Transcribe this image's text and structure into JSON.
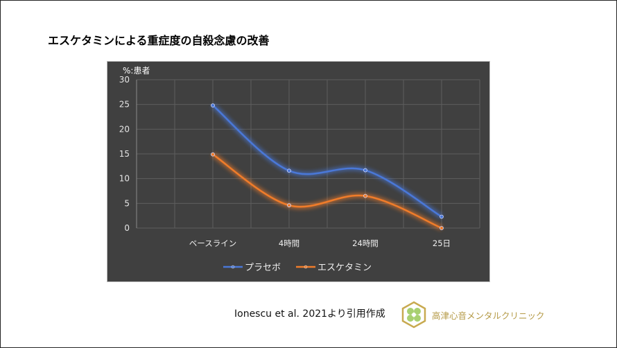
{
  "title": "エスケタミンによる重症度の自殺念慮の改善",
  "citation": "Ionescu et al. 2021より引用作成",
  "clinic_name": "高津心音メンタルクリニック",
  "chart_data": {
    "type": "line",
    "smooth": true,
    "ylabel": "%:患者",
    "ylim": [
      0,
      30
    ],
    "yticks": [
      0,
      5,
      10,
      15,
      20,
      25,
      30
    ],
    "categories": [
      "ベースライン",
      "4時間",
      "24時間",
      "25日"
    ],
    "grid": true,
    "legend_position": "bottom",
    "background": "#404040",
    "series": [
      {
        "name": "プラセボ",
        "color": "#4a78d8",
        "values": [
          24.8,
          11.6,
          11.7,
          2.3
        ]
      },
      {
        "name": "エスケタミン",
        "color": "#f07c2a",
        "values": [
          14.9,
          4.6,
          6.5,
          0.0
        ]
      }
    ]
  }
}
